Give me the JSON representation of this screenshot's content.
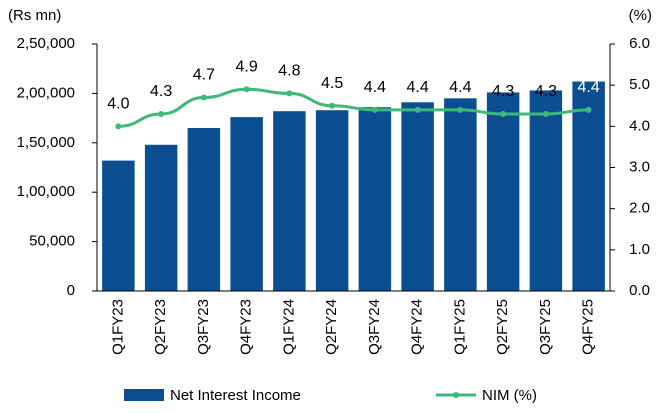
{
  "chart_data": {
    "type": "bar_line",
    "y_label": "(Rs mn)",
    "y2_label": "(%)",
    "categories": [
      "Q1FY23",
      "Q2FY23",
      "Q3FY23",
      "Q4FY23",
      "Q1FY24",
      "Q2FY24",
      "Q3FY24",
      "Q4FY24",
      "Q1FY25",
      "Q2FY25",
      "Q3FY25",
      "Q4FY25"
    ],
    "series": [
      {
        "name": "Net Interest Income",
        "color": "#0b4f92",
        "type": "bar",
        "values": [
          132000,
          148000,
          165000,
          176000,
          182000,
          183000,
          186000,
          191000,
          195000,
          201000,
          203000,
          212000
        ]
      },
      {
        "name": "NIM (%)",
        "color": "#3dba7a",
        "type": "line",
        "axis": "y2",
        "values": [
          4.0,
          4.3,
          4.7,
          4.9,
          4.8,
          4.5,
          4.4,
          4.4,
          4.4,
          4.3,
          4.3,
          4.4
        ],
        "value_labels": [
          "4.0",
          "4.3",
          "4.7",
          "4.9",
          "4.8",
          "4.5",
          "4.4",
          "4.4",
          "4.4",
          "4.3",
          "4.3",
          "4.4"
        ]
      }
    ],
    "ylim": [
      0,
      250000
    ],
    "yticks": [
      0,
      {
        "value": 50000,
        "label": "50,000"
      },
      {
        "value": 100000,
        "label": "1,00,000"
      },
      {
        "value": 150000,
        "label": "1,50,000"
      },
      {
        "value": 200000,
        "label": "2,00,000"
      },
      {
        "value": 250000,
        "label": "2,50,000"
      }
    ],
    "y2lim": [
      0,
      6
    ],
    "y2ticks": [
      {
        "value": 0,
        "label": "0.0"
      },
      {
        "value": 1,
        "label": "1.0"
      },
      {
        "value": 2,
        "label": "2.0"
      },
      {
        "value": 3,
        "label": "3.0"
      },
      {
        "value": 4,
        "label": "4.0"
      },
      {
        "value": 5,
        "label": "5.0"
      },
      {
        "value": 6,
        "label": "6.0"
      }
    ],
    "grid": false
  }
}
